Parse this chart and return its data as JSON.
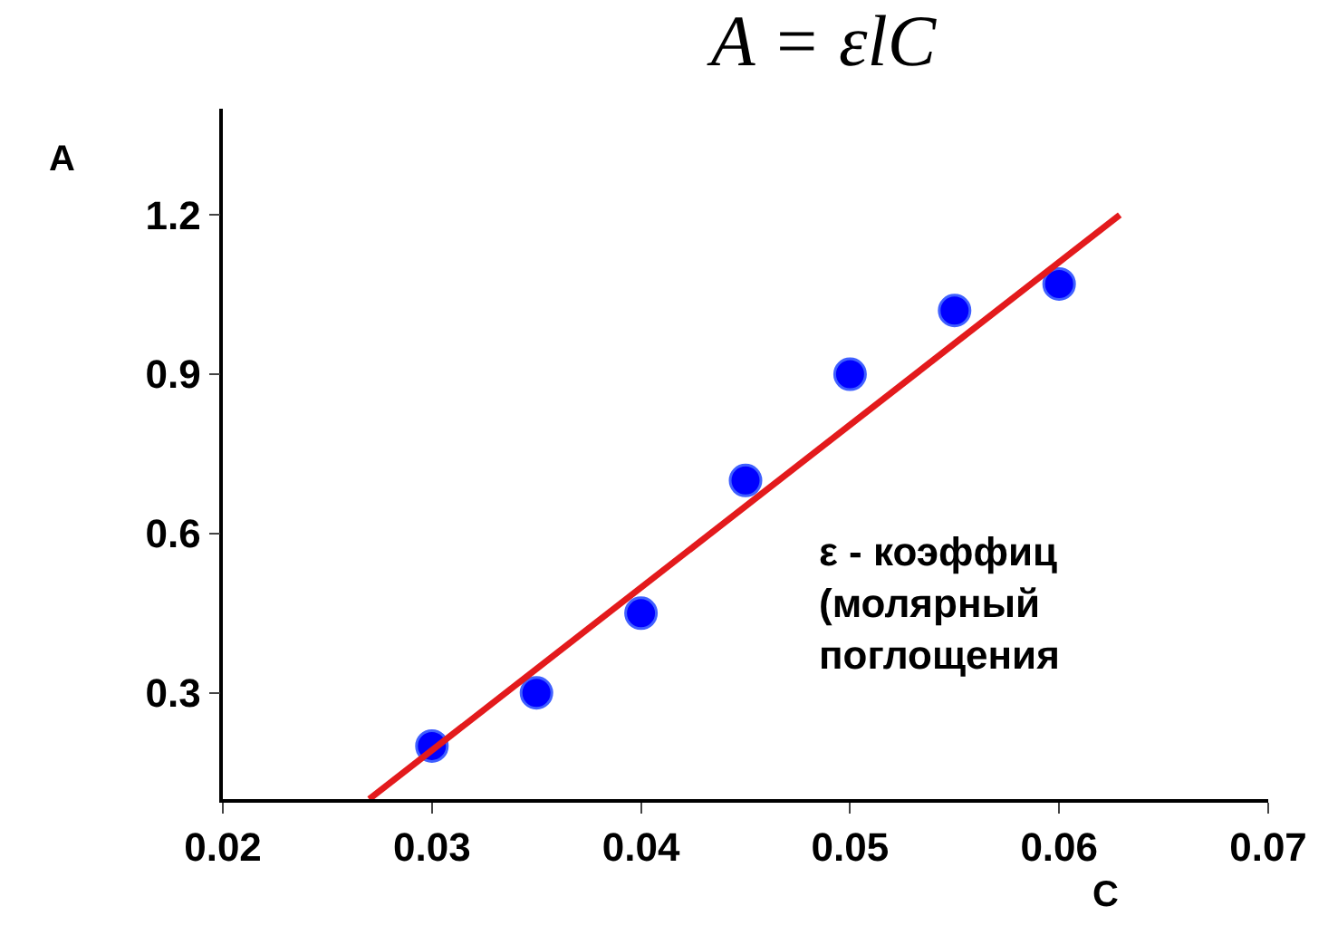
{
  "chart_data": {
    "type": "scatter",
    "title": "A = εlC",
    "xlabel": "C",
    "ylabel": "A",
    "x": [
      0.03,
      0.035,
      0.04,
      0.045,
      0.05,
      0.055,
      0.06
    ],
    "series": [
      {
        "color": "#0000ff",
        "marker": "circle",
        "values": [
          0.2,
          0.3,
          0.45,
          0.7,
          0.9,
          1.02,
          1.07
        ]
      },
      {
        "type": "line",
        "color": "#e31a1c",
        "x": [
          0.027,
          0.0629
        ],
        "values": [
          0.1,
          1.2
        ],
        "line_style": "solid"
      }
    ],
    "annotations": [
      "ε - коэффиц\n(молярный\nпоглощения"
    ],
    "xlim": [
      0.02,
      0.07
    ],
    "xticks": [
      0.02,
      0.03,
      0.04,
      0.05,
      0.06,
      0.07
    ],
    "ylim": [
      0.1,
      1.4
    ],
    "yticks": [
      0.3,
      0.6,
      0.9,
      1.2
    ]
  }
}
